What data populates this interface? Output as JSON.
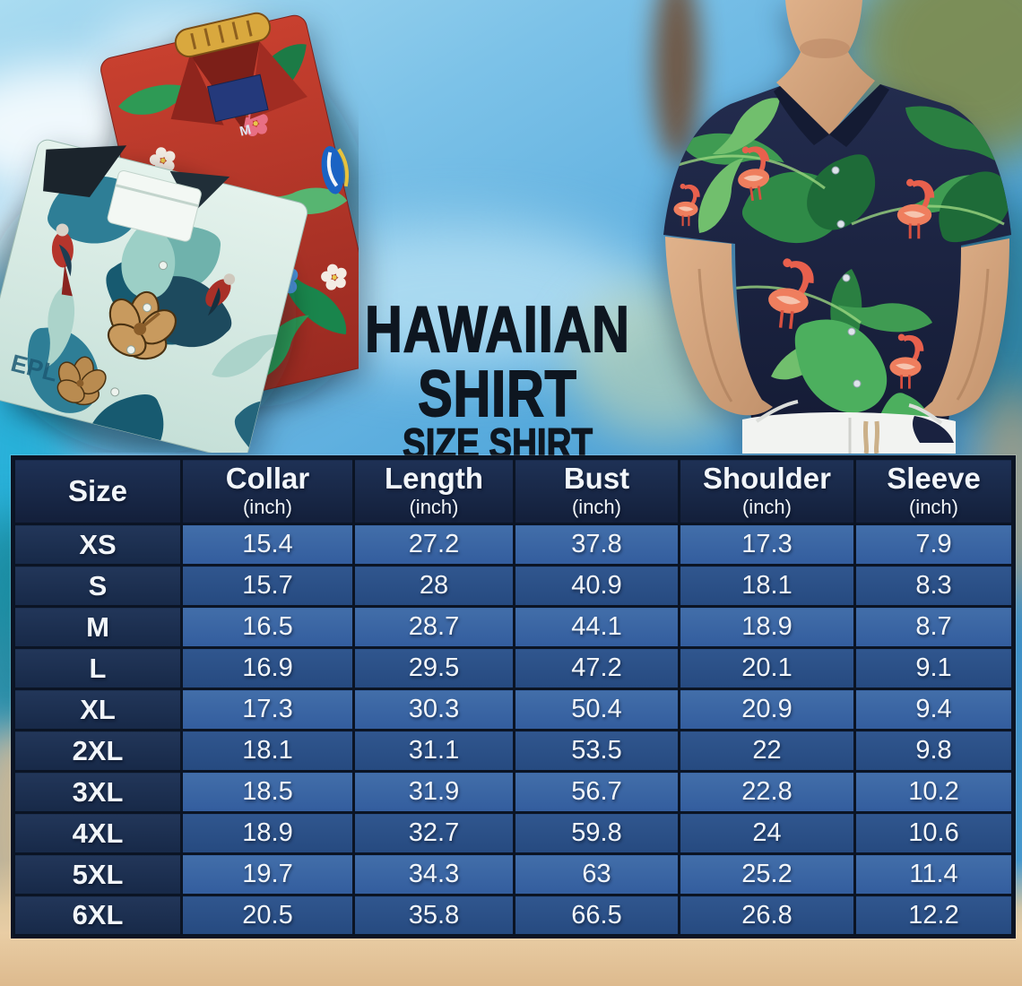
{
  "title": {
    "line1": "HAWAIIAN SHIRT",
    "line2": "SIZE SHIRT"
  },
  "table": {
    "header": [
      {
        "label": "Size",
        "sub": ""
      },
      {
        "label": "Collar",
        "sub": "(inch)"
      },
      {
        "label": "Length",
        "sub": "(inch)"
      },
      {
        "label": "Bust",
        "sub": "(inch)"
      },
      {
        "label": "Shoulder",
        "sub": "(inch)"
      },
      {
        "label": "Sleeve",
        "sub": "(inch)"
      }
    ],
    "rows": [
      {
        "size": "XS",
        "values": [
          "15.4",
          "27.2",
          "37.8",
          "17.3",
          "7.9"
        ]
      },
      {
        "size": "S",
        "values": [
          "15.7",
          "28",
          "40.9",
          "18.1",
          "8.3"
        ]
      },
      {
        "size": "M",
        "values": [
          "16.5",
          "28.7",
          "44.1",
          "18.9",
          "8.7"
        ]
      },
      {
        "size": "L",
        "values": [
          "16.9",
          "29.5",
          "47.2",
          "20.1",
          "9.1"
        ]
      },
      {
        "size": "XL",
        "values": [
          "17.3",
          "30.3",
          "50.4",
          "20.9",
          "9.4"
        ]
      },
      {
        "size": "2XL",
        "values": [
          "18.1",
          "31.1",
          "53.5",
          "22",
          "9.8"
        ]
      },
      {
        "size": "3XL",
        "values": [
          "18.5",
          "31.9",
          "56.7",
          "22.8",
          "10.2"
        ]
      },
      {
        "size": "4XL",
        "values": [
          "18.9",
          "32.7",
          "59.8",
          "24",
          "10.6"
        ]
      },
      {
        "size": "5XL",
        "values": [
          "19.7",
          "34.3",
          "63",
          "25.2",
          "11.4"
        ]
      },
      {
        "size": "6XL",
        "values": [
          "20.5",
          "35.8",
          "66.5",
          "26.8",
          "12.2"
        ]
      }
    ]
  },
  "photo_texts": {
    "red_shirt_size_tag": "M",
    "teal_shirt_print": "EPL"
  },
  "colors": {
    "header_bg": "#16233c",
    "size_col_bg": "#1d3053",
    "row_light": "#3a66a4",
    "row_dark": "#2b5189",
    "table_border": "#0b1424",
    "table_text": "#f2f6fa",
    "title_text": "#0e1620",
    "sky": "#6fb9e4",
    "ocean": "#21b0d8",
    "sand": "#e7cba1",
    "red_shirt": "#b5372e",
    "teal_shirt": "#d9ece6",
    "model_shirt_navy": "#1c2340",
    "flamingo": "#ef7e5e",
    "leaf_green": "#3f9b52"
  },
  "chart_data": {
    "type": "table",
    "title": "HAWAIIAN SHIRT SIZE SHIRT",
    "columns": [
      "Size",
      "Collar (inch)",
      "Length (inch)",
      "Bust (inch)",
      "Shoulder (inch)",
      "Sleeve (inch)"
    ],
    "rows": [
      [
        "XS",
        15.4,
        27.2,
        37.8,
        17.3,
        7.9
      ],
      [
        "S",
        15.7,
        28,
        40.9,
        18.1,
        8.3
      ],
      [
        "M",
        16.5,
        28.7,
        44.1,
        18.9,
        8.7
      ],
      [
        "L",
        16.9,
        29.5,
        47.2,
        20.1,
        9.1
      ],
      [
        "XL",
        17.3,
        30.3,
        50.4,
        20.9,
        9.4
      ],
      [
        "2XL",
        18.1,
        31.1,
        53.5,
        22,
        9.8
      ],
      [
        "3XL",
        18.5,
        31.9,
        56.7,
        22.8,
        10.2
      ],
      [
        "4XL",
        18.9,
        32.7,
        59.8,
        24,
        10.6
      ],
      [
        "5XL",
        19.7,
        34.3,
        63,
        25.2,
        11.4
      ],
      [
        "6XL",
        20.5,
        35.8,
        66.5,
        26.8,
        12.2
      ]
    ]
  }
}
